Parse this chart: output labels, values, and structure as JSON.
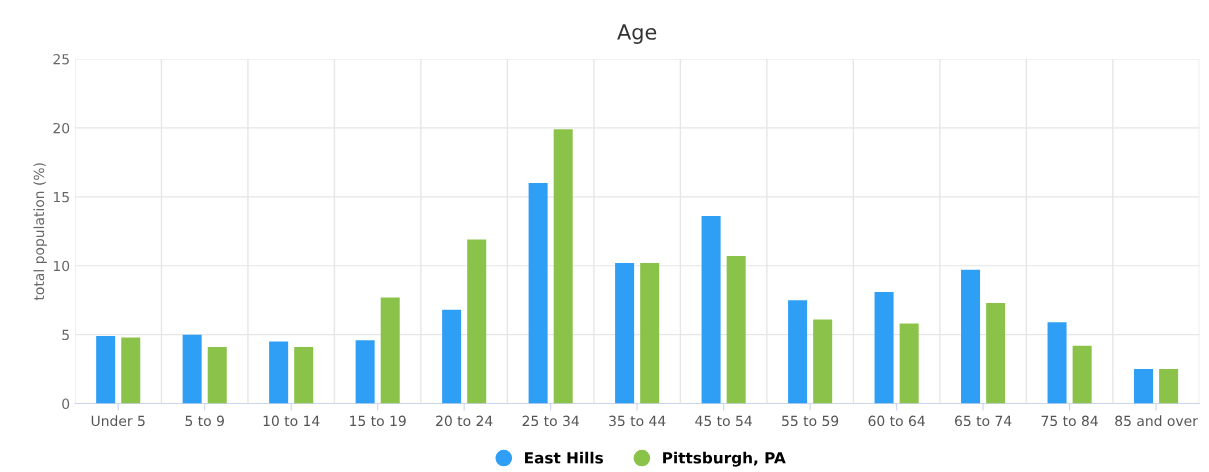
{
  "chart_data": {
    "type": "bar",
    "title": "Age",
    "ylabel": "total population (%)",
    "categories": [
      "Under 5",
      "5 to 9",
      "10 to 14",
      "15 to 19",
      "20 to 24",
      "25 to 34",
      "35 to 44",
      "45 to 54",
      "55 to 59",
      "60 to 64",
      "65 to 74",
      "75 to 84",
      "85 and over"
    ],
    "series": [
      {
        "name": "East Hills",
        "color": "#2f9ff5",
        "values": [
          4.9,
          5.0,
          4.5,
          4.6,
          6.8,
          16.0,
          10.2,
          13.6,
          7.5,
          8.1,
          9.7,
          5.9,
          2.5
        ]
      },
      {
        "name": "Pittsburgh, PA",
        "color": "#8bc34a",
        "values": [
          4.8,
          4.1,
          4.1,
          7.7,
          11.9,
          19.9,
          10.2,
          10.7,
          6.1,
          5.8,
          7.3,
          4.2,
          2.5
        ]
      }
    ],
    "ylim": [
      0,
      25
    ],
    "yticks": [
      0,
      5,
      10,
      15,
      20,
      25
    ],
    "grid": true,
    "legend": "bottom"
  }
}
